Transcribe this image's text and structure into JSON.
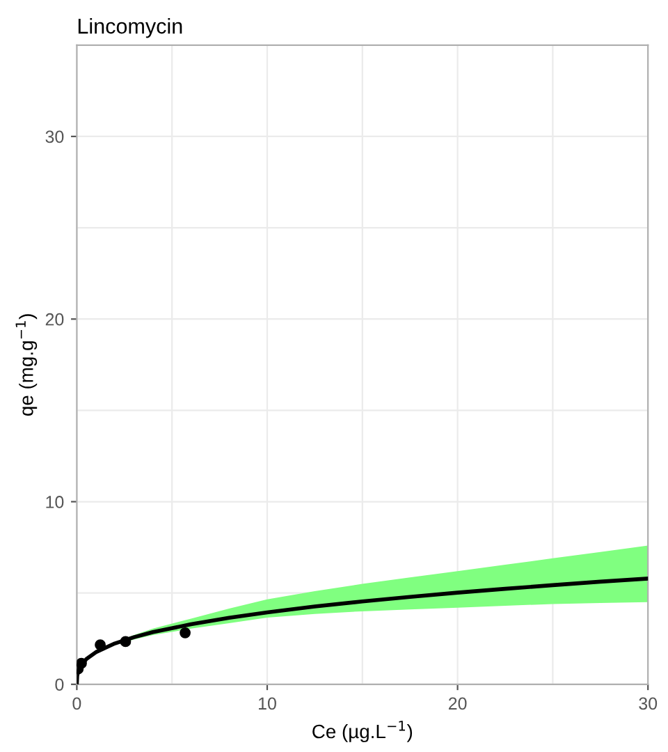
{
  "chart_data": {
    "type": "scatter",
    "title": "Lincomycin",
    "xlabel": "Ce (µg.L$^{−1}$)",
    "ylabel": "qe (mg.g$^{−1}$)",
    "xlim": [
      0,
      30
    ],
    "ylim": [
      0,
      35
    ],
    "xticks": [
      0,
      {
        "value": 5,
        "label": null
      },
      10,
      {
        "value": 15,
        "label": null
      },
      20,
      {
        "value": 25,
        "label": null
      },
      30
    ],
    "yticks": [
      0,
      {
        "value": 5,
        "label": null
      },
      10,
      {
        "value": 15,
        "label": null
      },
      20,
      {
        "value": 25,
        "label": null
      },
      30
    ],
    "grid": true,
    "series": [
      {
        "type": "line",
        "color": "#000000",
        "line_style": "solid",
        "marker": "none",
        "x": [
          0,
          0.02,
          0.05,
          0.1,
          0.25,
          0.5,
          1,
          2,
          3,
          4,
          6,
          8,
          10,
          12.5,
          15,
          17.5,
          20,
          22.5,
          25,
          27.5,
          30
        ],
        "values": [
          0,
          0.45,
          0.62,
          0.79,
          1.08,
          1.38,
          1.76,
          2.24,
          2.58,
          2.86,
          3.29,
          3.64,
          3.94,
          4.26,
          4.54,
          4.79,
          5.02,
          5.23,
          5.43,
          5.62,
          5.79
        ],
        "lower": [
          0,
          0.43,
          0.6,
          0.77,
          1.06,
          1.36,
          1.72,
          2.15,
          2.45,
          2.7,
          3.05,
          3.35,
          3.65,
          3.85,
          4.0,
          4.1,
          4.2,
          4.3,
          4.4,
          4.45,
          4.5
        ],
        "upper": [
          0,
          0.47,
          0.64,
          0.81,
          1.1,
          1.4,
          1.8,
          2.3,
          2.7,
          3.05,
          3.6,
          4.15,
          4.65,
          5.1,
          5.5,
          5.85,
          6.2,
          6.55,
          6.9,
          7.25,
          7.6
        ]
      },
      {
        "type": "scatter",
        "color": "#000000",
        "marker": "circle",
        "x": [
          0.07,
          0.24,
          1.23,
          2.56,
          5.69
        ],
        "values": [
          0.84,
          1.15,
          2.16,
          2.34,
          2.82
        ]
      }
    ]
  }
}
